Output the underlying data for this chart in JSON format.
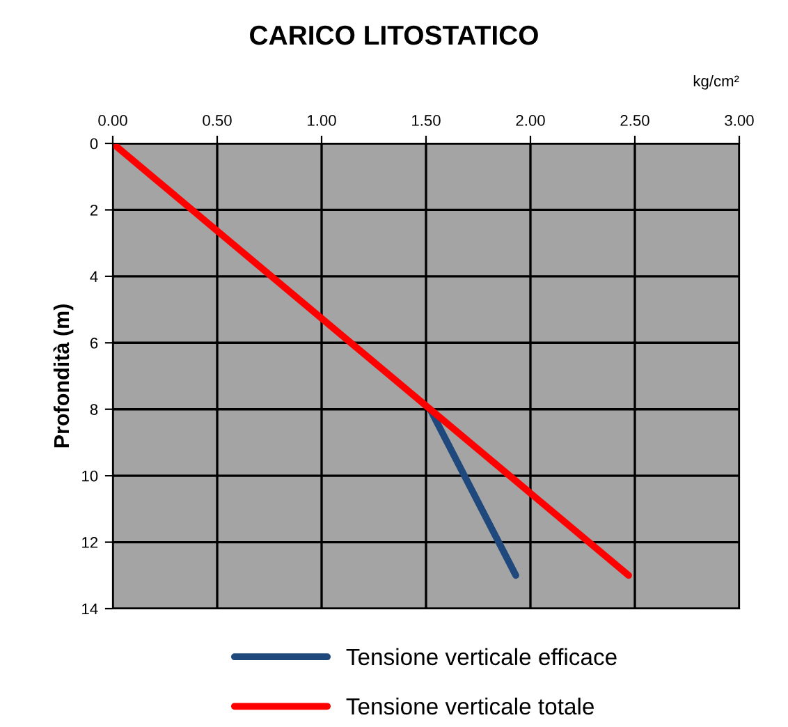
{
  "chart_data": {
    "type": "line",
    "title": "CARICO LITOSTATICO",
    "xlabel": "kg/cm²",
    "ylabel": "Profondità (m)",
    "series": [
      {
        "name": "Tensione verticale efficace",
        "color": "#1f497d",
        "x": [
          1.52,
          1.93
        ],
        "values": [
          8,
          13
        ]
      },
      {
        "name": "Tensione verticale totale",
        "color": "#ff0000",
        "x": [
          0,
          2.47
        ],
        "values": [
          0,
          13
        ]
      }
    ],
    "xlim": [
      0,
      3
    ],
    "xticks": [
      {
        "value": 0,
        "label": "0.00"
      },
      {
        "value": 0.5,
        "label": "0.50"
      },
      {
        "value": 1,
        "label": "1.00"
      },
      {
        "value": 1.5,
        "label": "1.50"
      },
      {
        "value": 2,
        "label": "2.00"
      },
      {
        "value": 2.5,
        "label": "2.50"
      },
      {
        "value": 3,
        "label": "3.00"
      }
    ],
    "ylim": [
      14,
      0
    ],
    "yticks": [
      0,
      2,
      4,
      6,
      8,
      10,
      12,
      14
    ],
    "grid": true,
    "legend": "bottom",
    "marker": "none",
    "line_style": "solid"
  }
}
